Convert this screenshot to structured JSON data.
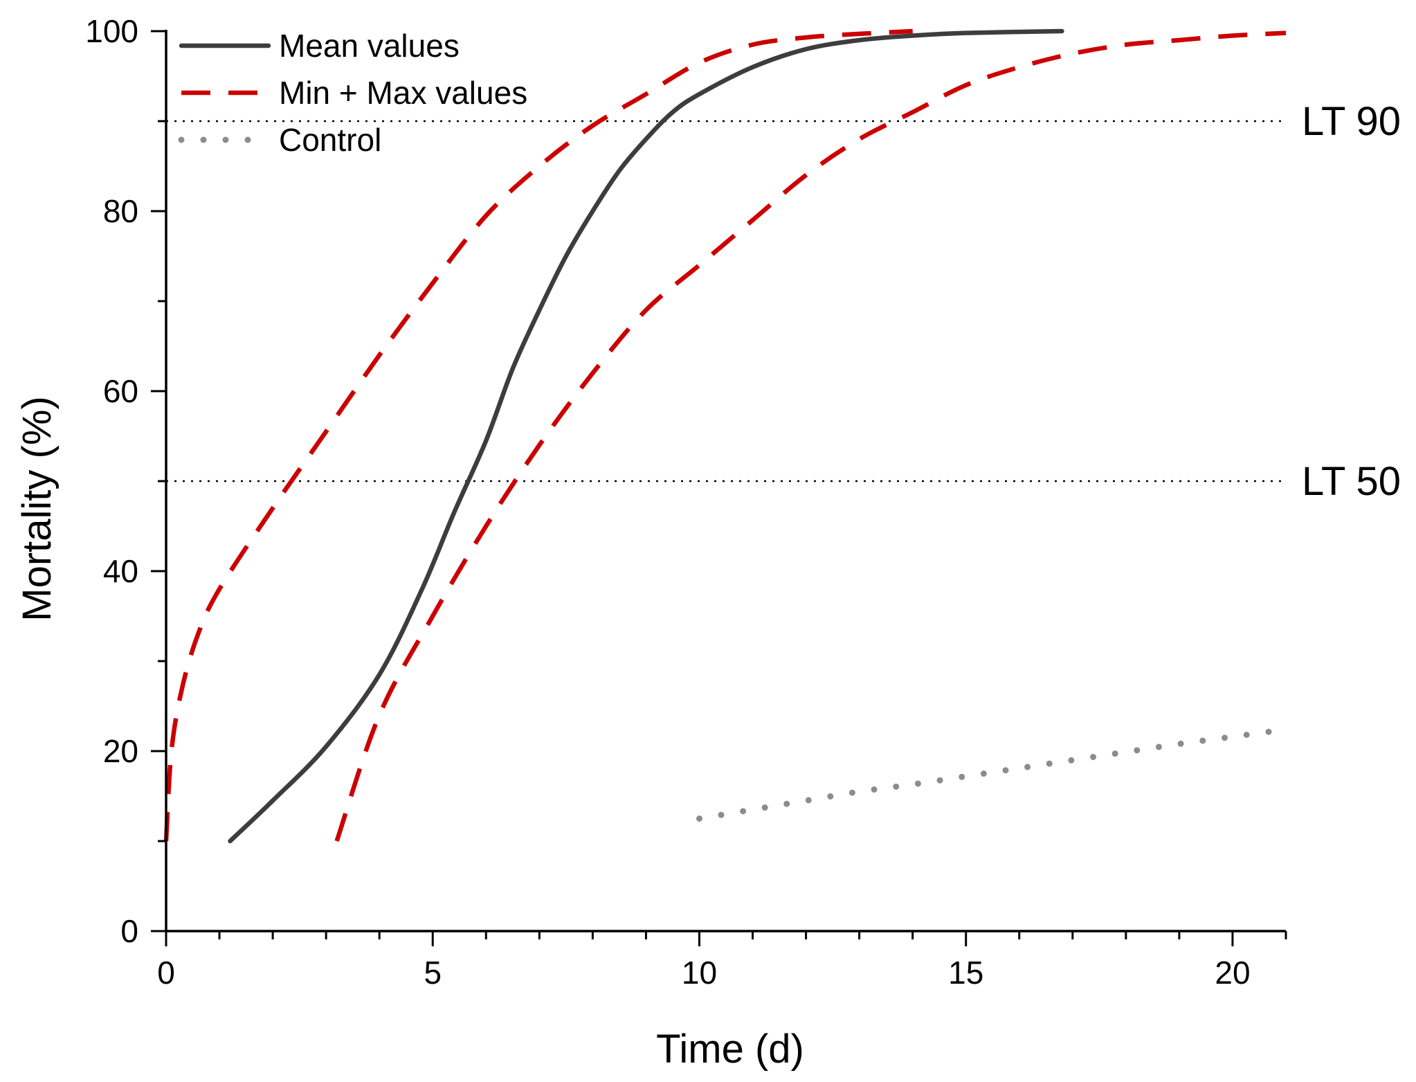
{
  "chart_data": {
    "type": "line",
    "xlabel": "Time (d)",
    "ylabel": "Mortality (%)",
    "xlim": [
      0,
      21
    ],
    "ylim": [
      0,
      100
    ],
    "xticks": [
      0,
      5,
      10,
      15,
      20
    ],
    "yticks": [
      0,
      20,
      40,
      60,
      80,
      100
    ],
    "x_minor_step": 1,
    "y_minor_step": 10,
    "grid": false,
    "legend_position": "top-left",
    "colors": {
      "mean": "#3d3d3d",
      "minmax": "#cc0000",
      "control": "#8c8c8c",
      "reference": "#000000"
    },
    "legend": [
      {
        "key": "mean",
        "label": "Mean values",
        "style": "solid"
      },
      {
        "key": "minmax",
        "label": "Min + Max values",
        "style": "dashed"
      },
      {
        "key": "control",
        "label": "Control",
        "style": "dotted"
      }
    ],
    "reference_lines": [
      {
        "key": "lt90",
        "y": 90,
        "label": "LT 90"
      },
      {
        "key": "lt50",
        "y": 50,
        "label": "LT 50"
      }
    ],
    "series": [
      {
        "key": "mean",
        "name": "Mean values",
        "points": [
          [
            1.2,
            10
          ],
          [
            2,
            14.5
          ],
          [
            3,
            20.5
          ],
          [
            4,
            28.5
          ],
          [
            4.8,
            38
          ],
          [
            5.4,
            46.5
          ],
          [
            6,
            54.5
          ],
          [
            6.5,
            62.5
          ],
          [
            7,
            69
          ],
          [
            7.5,
            75
          ],
          [
            8,
            80
          ],
          [
            8.5,
            84.5
          ],
          [
            9,
            88
          ],
          [
            9.5,
            91
          ],
          [
            10,
            93
          ],
          [
            11,
            96
          ],
          [
            12,
            98
          ],
          [
            13,
            99
          ],
          [
            14,
            99.5
          ],
          [
            15,
            99.8
          ],
          [
            16.8,
            100
          ]
        ]
      },
      {
        "key": "minmax_low",
        "name": "Min values",
        "legend_key": "minmax",
        "points": [
          [
            3.2,
            10
          ],
          [
            4,
            24
          ],
          [
            5,
            35
          ],
          [
            6,
            45
          ],
          [
            7,
            54
          ],
          [
            8,
            62
          ],
          [
            9,
            69
          ],
          [
            10,
            74
          ],
          [
            11,
            79
          ],
          [
            12,
            84
          ],
          [
            13,
            88
          ],
          [
            14,
            91
          ],
          [
            15,
            94
          ],
          [
            16,
            96
          ],
          [
            17,
            97.5
          ],
          [
            18,
            98.5
          ],
          [
            19,
            99
          ],
          [
            20,
            99.5
          ],
          [
            21,
            99.8
          ]
        ]
      },
      {
        "key": "minmax_high",
        "name": "Max values",
        "legend_key": "minmax",
        "points": [
          [
            0,
            10
          ],
          [
            0.1,
            20
          ],
          [
            0.3,
            27
          ],
          [
            0.6,
            33
          ],
          [
            1,
            38
          ],
          [
            2,
            47
          ],
          [
            3,
            55.5
          ],
          [
            4,
            64
          ],
          [
            5,
            72
          ],
          [
            6,
            79.5
          ],
          [
            7,
            85
          ],
          [
            8,
            89.5
          ],
          [
            9,
            93
          ],
          [
            10,
            96.5
          ],
          [
            11,
            98.5
          ],
          [
            12,
            99.3
          ],
          [
            13,
            99.7
          ],
          [
            14,
            100
          ]
        ]
      },
      {
        "key": "control",
        "name": "Control",
        "points": [
          [
            10,
            12.5
          ],
          [
            11,
            13.5
          ],
          [
            12,
            14.5
          ],
          [
            13,
            15.5
          ],
          [
            14,
            16.3
          ],
          [
            15,
            17.2
          ],
          [
            16,
            18.1
          ],
          [
            17,
            19
          ],
          [
            18,
            19.9
          ],
          [
            19,
            20.8
          ],
          [
            20,
            21.6
          ],
          [
            21,
            22.4
          ]
        ]
      }
    ]
  }
}
